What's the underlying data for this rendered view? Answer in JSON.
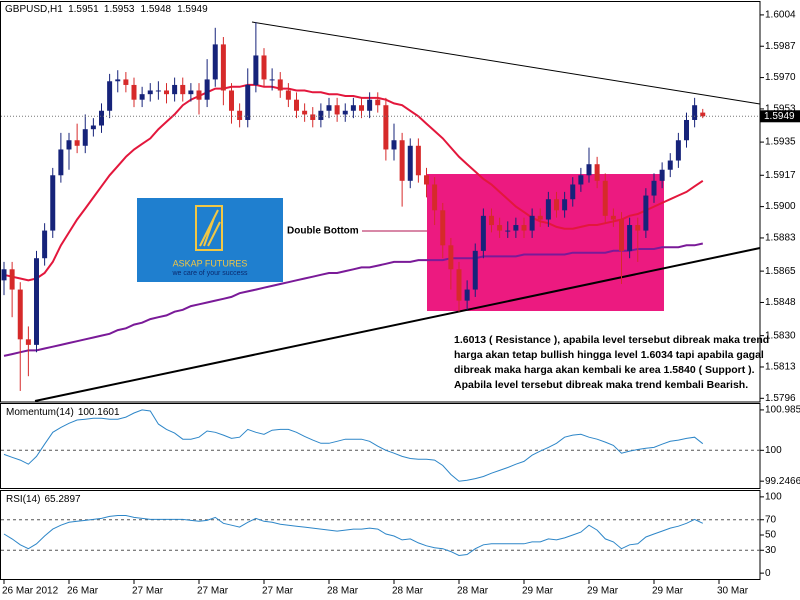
{
  "chart_data": [
    {
      "type": "candlestick",
      "symbol": "GBPUSD,H1",
      "categories": [
        "26 Mar 2012",
        null,
        null,
        null,
        null,
        null,
        null,
        null,
        "26 Mar",
        null,
        null,
        null,
        null,
        null,
        null,
        null,
        "27 Mar",
        null,
        null,
        null,
        null,
        null,
        null,
        null,
        "27 Mar",
        null,
        null,
        null,
        null,
        null,
        null,
        null,
        "27 Mar",
        null,
        null,
        null,
        null,
        null,
        null,
        null,
        "28 Mar",
        null,
        null,
        null,
        null,
        null,
        null,
        null,
        "28 Mar",
        null,
        null,
        null,
        null,
        null,
        null,
        null,
        "28 Mar",
        null,
        null,
        null,
        null,
        null,
        null,
        null,
        "29 Mar",
        null,
        null,
        null,
        null,
        null,
        null,
        null,
        "29 Mar",
        null,
        null,
        null,
        null,
        null,
        null,
        null,
        "29 Mar",
        null,
        null,
        null,
        null,
        null,
        null,
        null,
        "30 Mar"
      ],
      "open": [
        1.586,
        1.5866,
        1.5855,
        1.5828,
        1.5825,
        1.5872,
        1.5887,
        1.5917,
        1.5931,
        1.5936,
        1.5933,
        1.5942,
        1.5944,
        1.5952,
        1.5968,
        1.5969,
        1.5966,
        1.5958,
        1.5961,
        1.5963,
        1.5963,
        1.5961,
        1.5966,
        1.5961,
        1.5963,
        1.5958,
        1.5969,
        1.5988,
        1.5963,
        1.5952,
        1.5947,
        1.5966,
        1.5982,
        1.5969,
        1.5969,
        1.5963,
        1.5958,
        1.5952,
        1.595,
        1.5947,
        1.5952,
        1.5955,
        1.595,
        1.5952,
        1.5955,
        1.5952,
        1.5958,
        1.5955,
        1.5931,
        1.5936,
        1.5914,
        1.5933,
        1.5917,
        1.5912,
        1.5898,
        1.5879,
        1.5866,
        1.5849,
        1.5855,
        1.5876,
        1.5895,
        1.589,
        1.5887,
        1.5887,
        1.589,
        1.5887,
        1.5895,
        1.5893,
        1.5904,
        1.5898,
        1.5904,
        1.5912,
        1.5917,
        1.5923,
        1.5914,
        1.5895,
        1.5893,
        1.5876,
        1.589,
        1.5887,
        1.5906,
        1.5914,
        1.592,
        1.5925,
        1.5936,
        1.5947,
        1.5951,
        null,
        null
      ],
      "high": [
        1.587,
        1.587,
        1.5859,
        1.5835,
        1.5876,
        1.5891,
        1.5921,
        1.594,
        1.594,
        1.5945,
        1.595,
        1.5948,
        1.5956,
        1.5972,
        1.5974,
        1.5973,
        1.597,
        1.5965,
        1.5967,
        1.5968,
        1.5967,
        1.597,
        1.597,
        1.5967,
        1.5967,
        1.598,
        1.5997,
        1.5992,
        1.5967,
        1.5956,
        1.5975,
        1.6,
        1.5986,
        1.5975,
        1.5973,
        1.5967,
        1.5962,
        1.5956,
        1.5954,
        1.5956,
        1.5959,
        1.5959,
        1.5956,
        1.5959,
        1.5959,
        1.5962,
        1.5962,
        1.5959,
        1.5945,
        1.594,
        1.5937,
        1.5937,
        1.5921,
        1.5916,
        1.5902,
        1.5883,
        1.587,
        1.586,
        1.588,
        1.5899,
        1.5899,
        1.5894,
        1.5892,
        1.5894,
        1.5894,
        1.5899,
        1.5899,
        1.5908,
        1.5908,
        1.5908,
        1.5916,
        1.5921,
        1.5932,
        1.5927,
        1.5918,
        1.5899,
        1.5897,
        1.5894,
        1.5894,
        1.591,
        1.5918,
        1.5924,
        1.5929,
        1.594,
        1.5951,
        1.5959,
        1.5953,
        null,
        null
      ],
      "low": [
        1.5852,
        1.584,
        1.58,
        1.5808,
        1.5821,
        1.5868,
        1.5883,
        1.5913,
        1.592,
        1.5929,
        1.5929,
        1.5938,
        1.594,
        1.5948,
        1.5962,
        1.5962,
        1.5954,
        1.5954,
        1.5957,
        1.5958,
        1.5956,
        1.5957,
        1.5957,
        1.5957,
        1.595,
        1.5954,
        1.5965,
        1.5955,
        1.5945,
        1.5943,
        1.5943,
        1.5962,
        1.5965,
        1.5963,
        1.5959,
        1.5954,
        1.5948,
        1.5946,
        1.5943,
        1.5943,
        1.5948,
        1.5946,
        1.5946,
        1.5948,
        1.5948,
        1.5948,
        1.5951,
        1.5925,
        1.5925,
        1.59,
        1.591,
        1.5913,
        1.5905,
        1.589,
        1.5872,
        1.5855,
        1.5843,
        1.5844,
        1.5851,
        1.5872,
        1.5886,
        1.5883,
        1.5883,
        1.5883,
        1.5883,
        1.5883,
        1.5889,
        1.5889,
        1.5894,
        1.5894,
        1.59,
        1.5908,
        1.5913,
        1.591,
        1.5891,
        1.5889,
        1.5858,
        1.5872,
        1.587,
        1.5883,
        1.5902,
        1.591,
        1.5916,
        1.5921,
        1.5932,
        1.5943,
        1.5948,
        null,
        null
      ],
      "close": [
        1.5866,
        1.5855,
        1.5828,
        1.5825,
        1.5872,
        1.5887,
        1.5917,
        1.5931,
        1.5936,
        1.5933,
        1.5942,
        1.5944,
        1.5952,
        1.5968,
        1.5969,
        1.5966,
        1.5958,
        1.5961,
        1.5963,
        1.5963,
        1.5961,
        1.5966,
        1.5961,
        1.5963,
        1.5958,
        1.5969,
        1.5988,
        1.5963,
        1.5952,
        1.5947,
        1.5966,
        1.5982,
        1.5969,
        1.5969,
        1.5963,
        1.5958,
        1.5952,
        1.595,
        1.5947,
        1.5952,
        1.5955,
        1.595,
        1.5952,
        1.5955,
        1.5952,
        1.5958,
        1.5955,
        1.5931,
        1.5936,
        1.5914,
        1.5933,
        1.5917,
        1.5912,
        1.5898,
        1.5879,
        1.5866,
        1.5849,
        1.5855,
        1.5876,
        1.5895,
        1.589,
        1.5887,
        1.5887,
        1.589,
        1.5887,
        1.5895,
        1.5893,
        1.5904,
        1.5898,
        1.5904,
        1.5912,
        1.5917,
        1.5923,
        1.5914,
        1.5895,
        1.5893,
        1.5876,
        1.589,
        1.5887,
        1.5906,
        1.5914,
        1.592,
        1.5925,
        1.5936,
        1.5947,
        1.5955,
        1.5949,
        null,
        null
      ],
      "up_color": "#16237a",
      "down_color": "#d62a2a",
      "overlays": [
        {
          "color": "#e3173c",
          "values": [
            1.5863,
            1.5862,
            1.5861,
            1.586,
            1.5861,
            1.5864,
            1.587,
            1.5879,
            1.5886,
            1.5893,
            1.5899,
            1.5905,
            1.5911,
            1.5917,
            1.5922,
            1.5927,
            1.5931,
            1.5934,
            1.5937,
            1.5942,
            1.5946,
            1.595,
            1.5955,
            1.5958,
            1.596,
            1.5962,
            1.5964,
            1.5964,
            1.5965,
            1.5965,
            1.5966,
            1.5966,
            1.5965,
            1.5965,
            1.5964,
            1.5964,
            1.5963,
            1.5963,
            1.5962,
            1.5962,
            1.5961,
            1.5961,
            1.596,
            1.596,
            1.5959,
            1.5959,
            1.5959,
            1.5958,
            1.5956,
            1.5955,
            1.5952,
            1.5949,
            1.5945,
            1.5941,
            1.5937,
            1.5932,
            1.5927,
            1.5923,
            1.5919,
            1.5915,
            1.5912,
            1.5908,
            1.5904,
            1.59,
            1.5897,
            1.5894,
            1.5892,
            1.5891,
            1.5889,
            1.5888,
            1.5888,
            1.5889,
            1.589,
            1.589,
            1.5891,
            1.5892,
            1.5893,
            1.5895,
            1.5896,
            1.5898,
            1.59,
            1.5902,
            1.5904,
            1.5906,
            1.5908,
            1.5911,
            1.5914,
            null,
            null
          ]
        },
        {
          "color": "#7a1a98",
          "values": [
            1.5819,
            1.582,
            1.5821,
            1.5822,
            1.5822,
            1.5823,
            1.5824,
            1.5825,
            1.5826,
            1.5827,
            1.5828,
            1.5829,
            1.583,
            1.5831,
            1.5833,
            1.5834,
            1.5836,
            1.5837,
            1.5839,
            1.584,
            1.5841,
            1.5843,
            1.5844,
            1.5846,
            1.5847,
            1.5848,
            1.5849,
            1.585,
            1.5851,
            1.5853,
            1.5854,
            1.5855,
            1.5856,
            1.5857,
            1.5858,
            1.5859,
            1.586,
            1.5861,
            1.5862,
            1.5863,
            1.5864,
            1.5864,
            1.5865,
            1.5866,
            1.5867,
            1.5867,
            1.5868,
            1.5869,
            1.587,
            1.587,
            1.587,
            1.5871,
            1.5871,
            1.5871,
            1.5871,
            1.5872,
            1.5872,
            1.5872,
            1.5872,
            1.5873,
            1.5873,
            1.5873,
            1.5873,
            1.5873,
            1.5874,
            1.5874,
            1.5874,
            1.5874,
            1.5874,
            1.5874,
            1.5875,
            1.5875,
            1.5875,
            1.5875,
            1.5875,
            1.5876,
            1.5876,
            1.5876,
            1.5877,
            1.5877,
            1.5877,
            1.5878,
            1.5878,
            1.5878,
            1.5879,
            1.5879,
            1.588,
            null,
            null
          ]
        }
      ],
      "ylim": [
        1.5794,
        1.6011
      ],
      "yticks": [
        1.6004,
        1.5987,
        {
          "value": 1.597,
          "label": "1.5970"
        },
        1.5953,
        1.5935,
        1.5917,
        {
          "value": 1.59,
          "label": "1.5900"
        },
        1.5883,
        1.5865,
        1.5848,
        {
          "value": 1.583,
          "label": "1.5830"
        },
        1.5813,
        1.5796
      ],
      "double_bottom": "Double Bottom",
      "note": [
        "1.6013 ( Resistance ), apabila level tersebut dibreak maka trend",
        "harga akan tetap bullish hingga level 1.6034 tapi apabila gagal",
        "dibreak maka harga akan kembali ke area 1.5840 ( Support ).",
        "Apabila level tersebut dibreak maka trend kembali Bearish."
      ],
      "logo": {
        "name": "ASKAP FUTURES",
        "tagline": "we care of your success"
      }
    },
    {
      "type": "line",
      "title": "Momentum(14)",
      "color": "#2d86c8",
      "values": [
        99.9,
        99.83,
        99.76,
        99.66,
        99.85,
        100.15,
        100.44,
        100.56,
        100.66,
        100.74,
        100.76,
        100.78,
        100.78,
        100.76,
        100.76,
        100.81,
        100.91,
        100.9858,
        100.96,
        100.64,
        100.51,
        100.42,
        100.27,
        100.27,
        100.32,
        100.47,
        100.44,
        100.37,
        100.29,
        100.32,
        100.51,
        100.44,
        100.39,
        100.49,
        100.51,
        100.51,
        100.44,
        100.34,
        100.25,
        100.17,
        100.17,
        100.22,
        100.27,
        100.27,
        100.27,
        100.22,
        100.1,
        100,
        99.93,
        99.85,
        99.8,
        99.78,
        99.78,
        99.76,
        99.63,
        99.41,
        99.2466,
        99.27,
        99.31,
        99.36,
        99.44,
        99.51,
        99.58,
        99.66,
        99.73,
        99.88,
        99.98,
        100.07,
        100.17,
        100.32,
        100.37,
        100.39,
        100.32,
        100.27,
        100.2,
        100.12,
        99.93,
        99.98,
        100.02,
        100.05,
        100.07,
        100.15,
        100.22,
        100.25,
        100.29,
        100.32,
        100.1601,
        null,
        null
      ],
      "ylim": [
        99.08,
        101.13
      ],
      "yticks": [
        100.9858,
        100,
        99.2466
      ],
      "levels": [
        100
      ]
    },
    {
      "type": "line",
      "title": "RSI(14)",
      "color": "#2d86c8",
      "values": [
        51.3,
        44.9,
        37.2,
        32.1,
        38.5,
        48.7,
        57.7,
        62.8,
        66.7,
        67.9,
        69.2,
        70.5,
        71.8,
        74.4,
        75.6,
        75.6,
        73.1,
        71.8,
        70.5,
        70.5,
        70.5,
        70.5,
        70.5,
        69.2,
        67.9,
        69.2,
        73.1,
        65.4,
        62.8,
        60.3,
        66.7,
        71.8,
        67.9,
        66.7,
        64.1,
        62.8,
        61.5,
        60.3,
        59,
        57.7,
        56.4,
        55.1,
        56.4,
        57.7,
        57.7,
        59,
        57.7,
        51.3,
        48.7,
        43.6,
        44.9,
        39.7,
        35.9,
        33.3,
        32.1,
        28.2,
        23.1,
        24.4,
        32.1,
        37.2,
        38.5,
        38.5,
        38.5,
        38.5,
        38.5,
        41,
        41,
        44.9,
        43.6,
        46.2,
        50,
        53.8,
        62.8,
        56.4,
        44.9,
        41,
        32.1,
        37.2,
        38.5,
        47.4,
        51.3,
        55.1,
        59,
        61.5,
        65.4,
        70.5,
        65.2897,
        null,
        null
      ],
      "ylim": [
        -9,
        109
      ],
      "yticks": [
        100,
        70,
        50,
        30,
        0
      ],
      "levels": [
        30,
        70
      ]
    }
  ]
}
